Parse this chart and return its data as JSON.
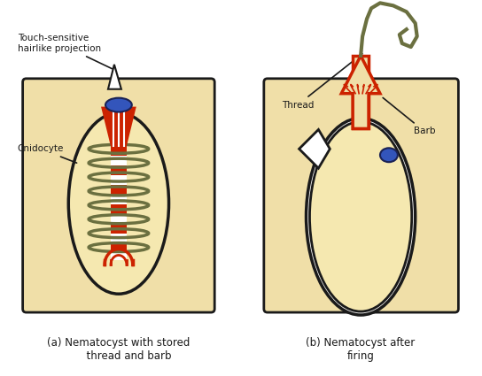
{
  "bg_color": "#f0dfa8",
  "outline_color": "#1a1a1a",
  "oval_fill": "#f5e8b0",
  "red_color": "#cc2200",
  "olive_color": "#6b7040",
  "blue_color": "#3355bb",
  "white_color": "#ffffff",
  "tan_color": "#f0dfa8",
  "label_color": "#1a1a1a",
  "label_a": "(a) Nematocyst with stored\n      thread and barb",
  "label_b": "(b) Nematocyst after\nfiring",
  "annotation_touch": "Touch-sensitive\nhairlike projection",
  "annotation_cnidocyte": "Cnidocyte",
  "annotation_thread": "Thread",
  "annotation_barb": "Barb",
  "fig_bg": "#ffffff"
}
